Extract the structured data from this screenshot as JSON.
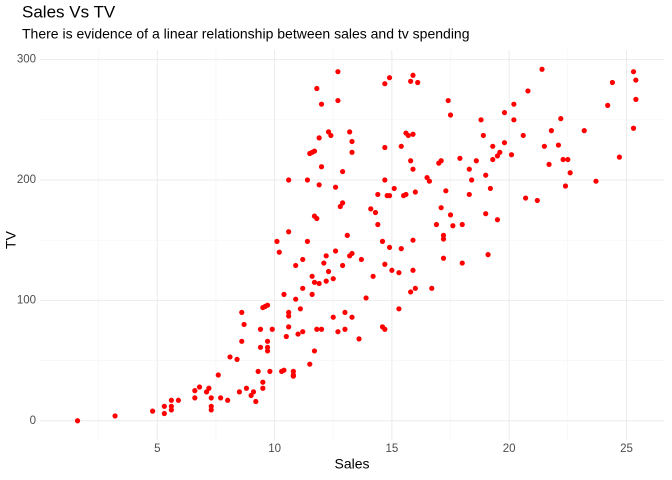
{
  "chart_data": {
    "type": "scatter",
    "title": "Sales Vs TV",
    "subtitle": "There is evidence of a linear relationship between sales and tv spending",
    "x_label": "Sales",
    "y_label": "TV",
    "color": "#ff0000",
    "grid": true,
    "xlim": [
      0,
      26.6
    ],
    "ylim": [
      -16,
      308
    ],
    "xticks": [
      5,
      10,
      15,
      20,
      25
    ],
    "yticks": [
      0,
      100,
      200,
      300
    ],
    "x": [
      1.6,
      3.2,
      4.8,
      5.3,
      5.3,
      5.6,
      5.6,
      5.6,
      5.9,
      6.6,
      6.6,
      6.8,
      7.1,
      7.2,
      7.3,
      7.3,
      7.3,
      7.6,
      7.7,
      8.0,
      8.1,
      8.4,
      8.5,
      8.6,
      8.6,
      8.7,
      8.8,
      9.0,
      9.1,
      9.2,
      9.4,
      9.4,
      9.3,
      9.5,
      9.5,
      9.5,
      9.6,
      9.7,
      9.7,
      9.7,
      9.7,
      9.8,
      9.9,
      10.1,
      10.2,
      10.3,
      10.4,
      10.4,
      10.5,
      10.6,
      10.6,
      10.6,
      10.6,
      10.6,
      10.8,
      10.8,
      10.8,
      10.9,
      10.9,
      11.0,
      11.1,
      11.2,
      11.2,
      11.2,
      11.4,
      11.4,
      11.5,
      11.5,
      11.6,
      11.7,
      11.6,
      11.6,
      11.7,
      11.7,
      11.7,
      11.8,
      11.8,
      11.8,
      12.0,
      11.9,
      11.9,
      11.9,
      12.0,
      12.0,
      12.1,
      12.2,
      12.2,
      12.3,
      12.3,
      12.4,
      12.5,
      12.5,
      12.6,
      12.6,
      12.7,
      12.7,
      12.7,
      12.8,
      12.9,
      12.9,
      12.9,
      13.0,
      13.0,
      13.1,
      13.2,
      13.2,
      13.3,
      13.3,
      13.3,
      13.3,
      13.6,
      13.7,
      13.9,
      14.1,
      14.2,
      14.3,
      14.4,
      14.4,
      14.6,
      14.6,
      14.7,
      14.7,
      14.7,
      14.7,
      14.8,
      14.7,
      14.9,
      14.9,
      14.9,
      15.0,
      15.1,
      15.3,
      15.3,
      15.4,
      15.4,
      15.5,
      15.6,
      15.6,
      15.7,
      15.8,
      15.8,
      15.8,
      15.9,
      15.9,
      15.9,
      15.9,
      15.9,
      16.0,
      16.0,
      16.1,
      16.5,
      16.6,
      16.7,
      16.9,
      17.0,
      17.1,
      17.1,
      17.2,
      17.2,
      17.2,
      17.3,
      17.4,
      17.5,
      17.5,
      17.6,
      17.9,
      18.0,
      18.0,
      18.3,
      18.3,
      18.4,
      18.6,
      18.8,
      18.9,
      19.0,
      19.0,
      19.1,
      19.2,
      19.3,
      19.3,
      19.5,
      19.5,
      19.6,
      19.8,
      19.8,
      20.1,
      20.2,
      20.2,
      20.6,
      20.7,
      20.8,
      21.2,
      21.4,
      21.5,
      21.7,
      21.8,
      22.1,
      22.2,
      22.3,
      22.4,
      22.5,
      22.6,
      23.2,
      23.7,
      24.2,
      24.4,
      24.7,
      25.3,
      25.4,
      25.4,
      25.3
    ],
    "values": [
      0,
      4,
      8,
      6,
      12,
      9,
      12,
      17,
      17,
      19,
      25,
      28,
      24,
      27,
      9,
      12,
      19,
      38,
      19,
      17,
      53,
      51,
      24,
      66,
      90,
      80,
      27,
      21,
      24,
      16,
      76,
      61,
      41,
      27,
      32,
      94,
      95,
      96,
      66,
      61,
      58,
      41,
      76,
      149,
      140,
      41,
      42,
      105,
      70,
      157,
      200,
      87,
      90,
      78,
      41,
      37,
      38,
      101,
      129,
      72,
      93,
      134,
      74,
      110,
      149,
      200,
      47,
      222,
      223,
      224,
      120,
      105,
      115,
      58,
      170,
      168,
      276,
      76,
      76,
      114,
      235,
      196,
      211,
      263,
      131,
      137,
      116,
      124,
      240,
      237,
      86,
      118,
      194,
      141,
      74,
      266,
      290,
      178,
      181,
      207,
      129,
      90,
      76,
      154,
      240,
      137,
      139,
      223,
      232,
      86,
      68,
      134,
      102,
      176,
      120,
      173,
      188,
      163,
      149,
      78,
      76,
      200,
      227,
      130,
      187,
      280,
      187,
      285,
      144,
      125,
      193,
      123,
      93,
      143,
      228,
      187,
      188,
      239,
      237,
      216,
      282,
      107,
      209,
      150,
      125,
      287,
      238,
      190,
      110,
      281,
      202,
      199,
      110,
      163,
      214,
      216,
      177,
      151,
      154,
      135,
      191,
      266,
      254,
      171,
      162,
      218,
      163,
      131,
      188,
      209,
      200,
      216,
      250,
      237,
      204,
      172,
      138,
      193,
      228,
      217,
      220,
      167,
      223,
      256,
      231,
      221,
      250,
      263,
      237,
      185,
      274,
      183,
      292,
      228,
      213,
      241,
      229,
      251,
      217,
      195,
      217,
      206,
      241,
      199,
      262,
      281,
      219,
      290,
      283,
      267,
      243
    ]
  }
}
